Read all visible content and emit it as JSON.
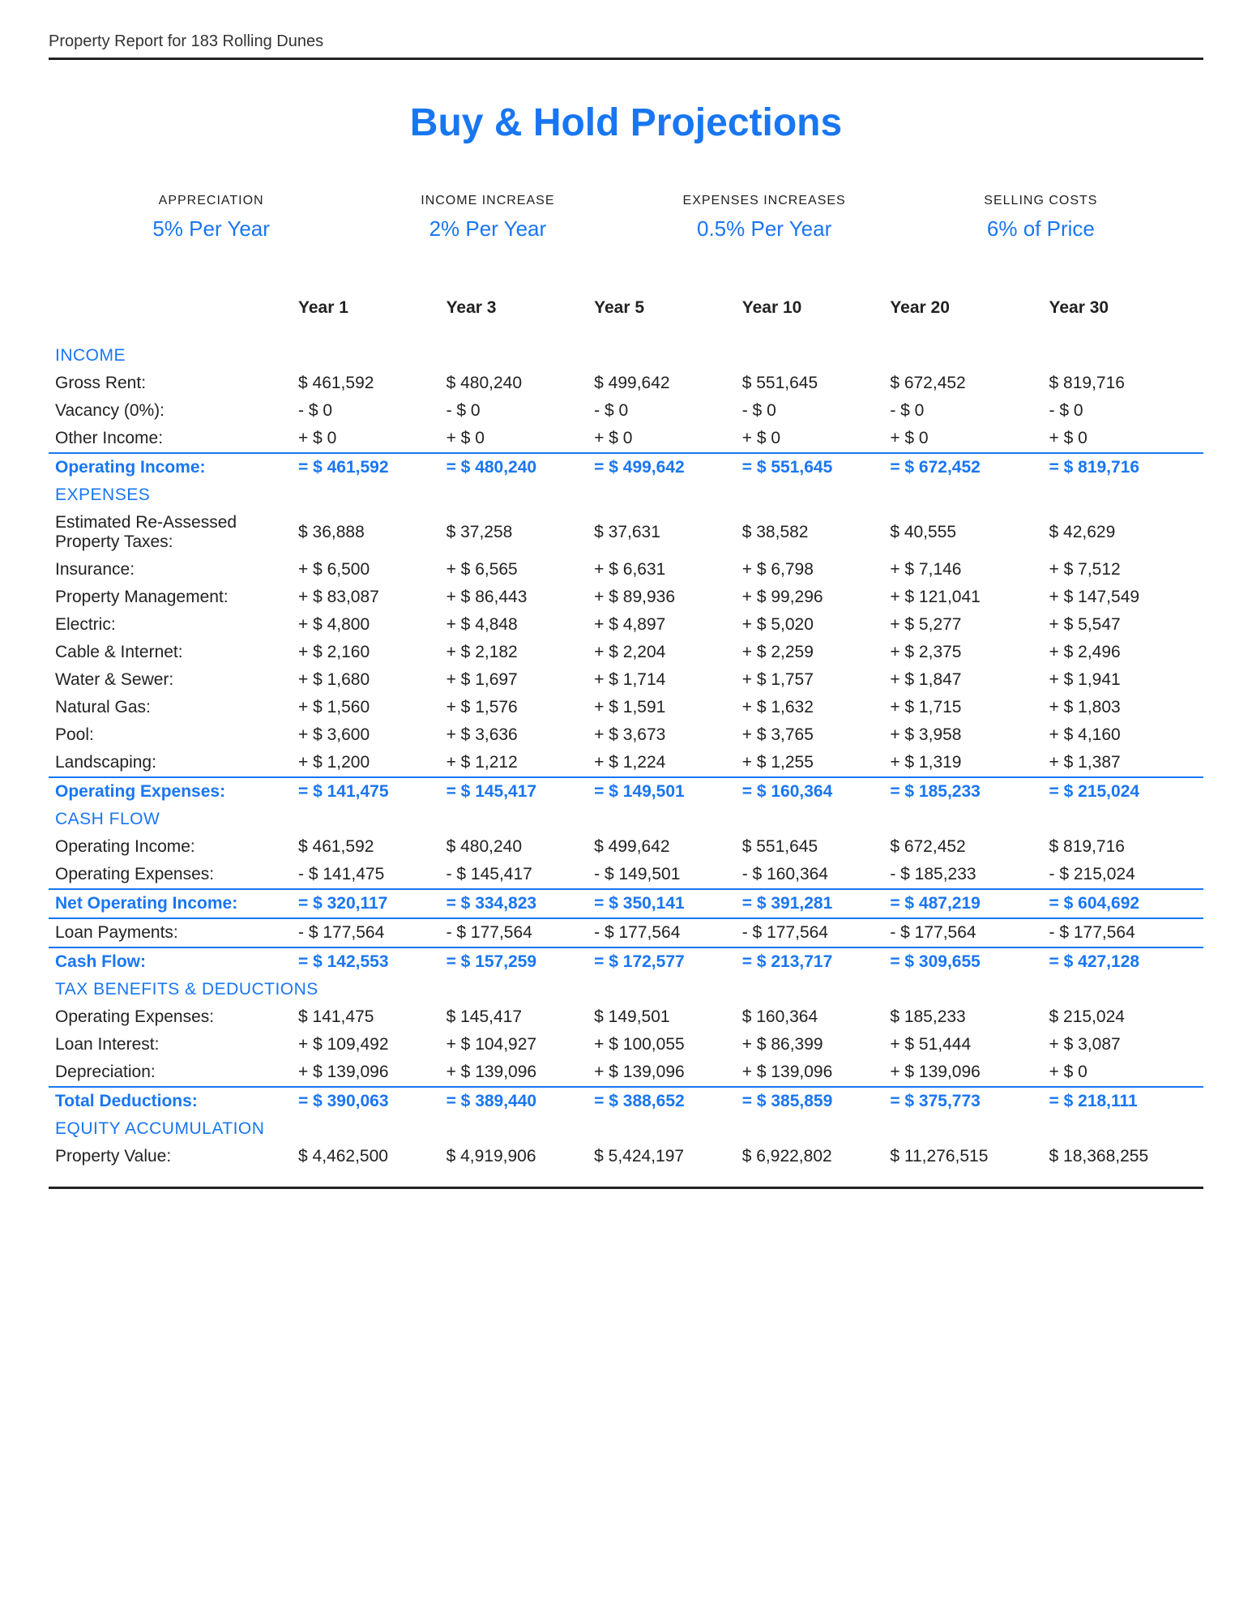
{
  "header": "Property Report for 183 Rolling Dunes",
  "title": "Buy & Hold Projections",
  "assumptions": [
    {
      "label": "APPRECIATION",
      "value": "5% Per Year"
    },
    {
      "label": "INCOME INCREASE",
      "value": "2% Per Year"
    },
    {
      "label": "EXPENSES INCREASES",
      "value": "0.5% Per Year"
    },
    {
      "label": "SELLING COSTS",
      "value": "6% of Price"
    }
  ],
  "years": [
    "Year 1",
    "Year 3",
    "Year 5",
    "Year 10",
    "Year 20",
    "Year 30"
  ],
  "sections": [
    {
      "name": "INCOME",
      "rows": [
        {
          "label": "Gross Rent:",
          "values": [
            "$ 461,592",
            "$ 480,240",
            "$ 499,642",
            "$ 551,645",
            "$ 672,452",
            "$ 819,716"
          ],
          "prefix": ""
        },
        {
          "label": "Vacancy (0%):",
          "values": [
            "$ 0",
            "$ 0",
            "$ 0",
            "$ 0",
            "$ 0",
            "$ 0"
          ],
          "prefix": "- "
        },
        {
          "label": "Other Income:",
          "values": [
            "$ 0",
            "$ 0",
            "$ 0",
            "$ 0",
            "$ 0",
            "$ 0"
          ],
          "prefix": "+ "
        }
      ],
      "subtotals": [
        {
          "label": "Operating Income:",
          "values": [
            "$ 461,592",
            "$ 480,240",
            "$ 499,642",
            "$ 551,645",
            "$ 672,452",
            "$ 819,716"
          ],
          "prefix": "= "
        }
      ]
    },
    {
      "name": "EXPENSES",
      "rows": [
        {
          "label": "Estimated Re-Assessed Property Taxes:",
          "values": [
            "$ 36,888",
            "$ 37,258",
            "$ 37,631",
            "$ 38,582",
            "$ 40,555",
            "$ 42,629"
          ],
          "prefix": ""
        },
        {
          "label": "Insurance:",
          "values": [
            "$ 6,500",
            "$ 6,565",
            "$ 6,631",
            "$ 6,798",
            "$ 7,146",
            "$ 7,512"
          ],
          "prefix": "+ "
        },
        {
          "label": "Property Management:",
          "values": [
            "$ 83,087",
            "$ 86,443",
            "$ 89,936",
            "$ 99,296",
            "$ 121,041",
            "$ 147,549"
          ],
          "prefix": "+ "
        },
        {
          "label": "Electric:",
          "values": [
            "$ 4,800",
            "$ 4,848",
            "$ 4,897",
            "$ 5,020",
            "$ 5,277",
            "$ 5,547"
          ],
          "prefix": "+ "
        },
        {
          "label": "Cable & Internet:",
          "values": [
            "$ 2,160",
            "$ 2,182",
            "$ 2,204",
            "$ 2,259",
            "$ 2,375",
            "$ 2,496"
          ],
          "prefix": "+ "
        },
        {
          "label": "Water & Sewer:",
          "values": [
            "$ 1,680",
            "$ 1,697",
            "$ 1,714",
            "$ 1,757",
            "$ 1,847",
            "$ 1,941"
          ],
          "prefix": "+ "
        },
        {
          "label": "Natural Gas:",
          "values": [
            "$ 1,560",
            "$ 1,576",
            "$ 1,591",
            "$ 1,632",
            "$ 1,715",
            "$ 1,803"
          ],
          "prefix": "+ "
        },
        {
          "label": "Pool:",
          "values": [
            "$ 3,600",
            "$ 3,636",
            "$ 3,673",
            "$ 3,765",
            "$ 3,958",
            "$ 4,160"
          ],
          "prefix": "+ "
        },
        {
          "label": "Landscaping:",
          "values": [
            "$ 1,200",
            "$ 1,212",
            "$ 1,224",
            "$ 1,255",
            "$ 1,319",
            "$ 1,387"
          ],
          "prefix": "+ "
        }
      ],
      "subtotals": [
        {
          "label": "Operating Expenses:",
          "values": [
            "$ 141,475",
            "$ 145,417",
            "$ 149,501",
            "$ 160,364",
            "$ 185,233",
            "$ 215,024"
          ],
          "prefix": "= "
        }
      ]
    },
    {
      "name": "CASH FLOW",
      "rows": [
        {
          "label": "Operating Income:",
          "values": [
            "$ 461,592",
            "$ 480,240",
            "$ 499,642",
            "$ 551,645",
            "$ 672,452",
            "$ 819,716"
          ],
          "prefix": ""
        },
        {
          "label": "Operating Expenses:",
          "values": [
            "$ 141,475",
            "$ 145,417",
            "$ 149,501",
            "$ 160,364",
            "$ 185,233",
            "$ 215,024"
          ],
          "prefix": "- "
        }
      ],
      "subtotals": [
        {
          "label": "Net Operating Income:",
          "values": [
            "$ 320,117",
            "$ 334,823",
            "$ 350,141",
            "$ 391,281",
            "$ 487,219",
            "$ 604,692"
          ],
          "prefix": "= "
        },
        {
          "label": "Loan Payments:",
          "values": [
            "$ 177,564",
            "$ 177,564",
            "$ 177,564",
            "$ 177,564",
            "$ 177,564",
            "$ 177,564"
          ],
          "prefix": "- ",
          "plain": true
        },
        {
          "label": "Cash Flow:",
          "values": [
            "$ 142,553",
            "$ 157,259",
            "$ 172,577",
            "$ 213,717",
            "$ 309,655",
            "$ 427,128"
          ],
          "prefix": "= "
        }
      ]
    },
    {
      "name": "TAX BENEFITS & DEDUCTIONS",
      "rows": [
        {
          "label": "Operating Expenses:",
          "values": [
            "$ 141,475",
            "$ 145,417",
            "$ 149,501",
            "$ 160,364",
            "$ 185,233",
            "$ 215,024"
          ],
          "prefix": ""
        },
        {
          "label": "Loan Interest:",
          "values": [
            "$ 109,492",
            "$ 104,927",
            "$ 100,055",
            "$ 86,399",
            "$ 51,444",
            "$ 3,087"
          ],
          "prefix": "+ "
        },
        {
          "label": "Depreciation:",
          "values": [
            "$ 139,096",
            "$ 139,096",
            "$ 139,096",
            "$ 139,096",
            "$ 139,096",
            "$ 0"
          ],
          "prefix": "+ "
        }
      ],
      "subtotals": [
        {
          "label": "Total Deductions:",
          "values": [
            "$ 390,063",
            "$ 389,440",
            "$ 388,652",
            "$ 385,859",
            "$ 375,773",
            "$ 218,111"
          ],
          "prefix": "= "
        }
      ]
    },
    {
      "name": "EQUITY ACCUMULATION",
      "rows": [
        {
          "label": "Property Value:",
          "values": [
            "$ 4,462,500",
            "$ 4,919,906",
            "$ 5,424,197",
            "$ 6,922,802",
            "$ 11,276,515",
            "$ 18,368,255"
          ],
          "prefix": ""
        }
      ],
      "subtotals": []
    }
  ]
}
